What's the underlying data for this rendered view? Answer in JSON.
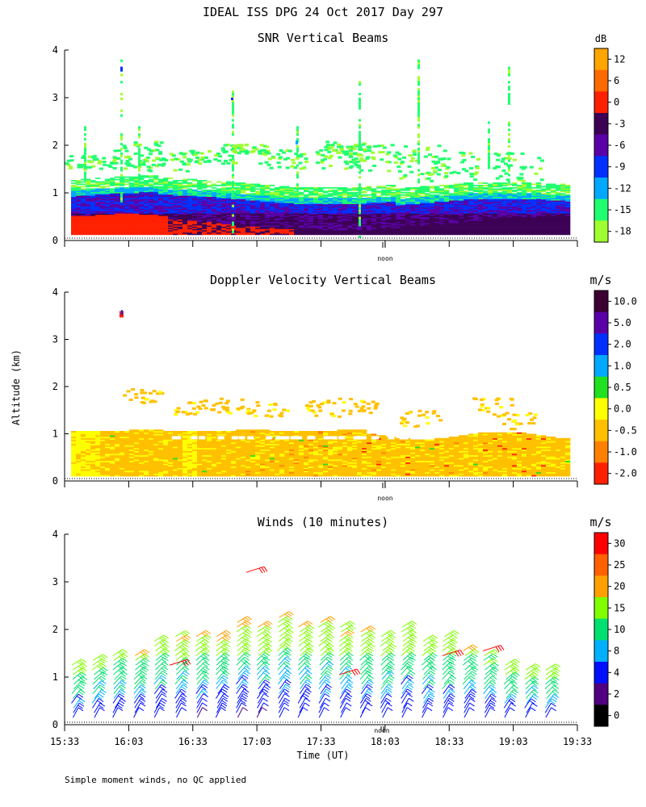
{
  "page_title": "IDEAL ISS DPG  24 Oct 2017 Day 297",
  "footer_note": "Simple moment winds, no QC applied",
  "y_axis_label": "Altitude (km)",
  "x_axis_label": "Time (UT)",
  "noon_label": "noon",
  "chart_data": [
    {
      "type": "heatmap",
      "title": "SNR Vertical Beams",
      "colorbar_unit": "dB",
      "colorbar_ticks": [
        "12",
        "6",
        "0",
        "-3",
        "-6",
        "-9",
        "-12",
        "-15",
        "-18"
      ],
      "colorbar_colors": [
        "#ffa500",
        "#ff6a00",
        "#ff2000",
        "#3c0055",
        "#5a00a8",
        "#0030ff",
        "#00a8ff",
        "#20ff70",
        "#a0ff30"
      ],
      "ylim": [
        0,
        4
      ],
      "yticks": [
        "0",
        "1",
        "2",
        "3",
        "4"
      ],
      "colors": {
        "strong": "#ff2000",
        "mid_high": "#3c0055",
        "mid": "#5a00a8",
        "mid_low": "#0030ff",
        "cyan": "#00a8ff",
        "green": "#20ff70",
        "weak": "#a0ff30"
      }
    },
    {
      "type": "heatmap",
      "title": "Doppler Velocity Vertical Beams",
      "colorbar_unit": "m/s",
      "colorbar_ticks": [
        "10.0",
        "5.0",
        "2.0",
        "1.0",
        "0.5",
        "0.0",
        "-0.5",
        "-1.0",
        "-2.0"
      ],
      "colorbar_colors": [
        "#3c0033",
        "#5a00a8",
        "#0030ff",
        "#00a8ff",
        "#20e020",
        "#ffff00",
        "#ffc000",
        "#ff8000",
        "#ff2000"
      ],
      "ylim": [
        0,
        4
      ],
      "yticks": [
        "0",
        "1",
        "2",
        "3",
        "4"
      ],
      "colors": {
        "base": "#ffc000",
        "light": "#ffff00",
        "orange": "#ff8000",
        "red": "#ff2000",
        "green": "#20e020"
      }
    },
    {
      "type": "scatter",
      "title": "Winds (10 minutes)",
      "colorbar_unit": "m/s",
      "colorbar_ticks": [
        "30",
        "25",
        "20",
        "15",
        "10",
        "8",
        "4",
        "2",
        "0"
      ],
      "colorbar_colors": [
        "#ff0000",
        "#ff6000",
        "#ffa000",
        "#80ff00",
        "#00e070",
        "#00b0ff",
        "#0010ff",
        "#500080",
        "#000000"
      ],
      "ylim": [
        0,
        4
      ],
      "yticks": [
        "0",
        "1",
        "2",
        "3",
        "4"
      ],
      "xticks": [
        "15:33",
        "16:03",
        "16:33",
        "17:03",
        "17:33",
        "18:03",
        "18:33",
        "19:03",
        "19:33"
      ]
    }
  ]
}
